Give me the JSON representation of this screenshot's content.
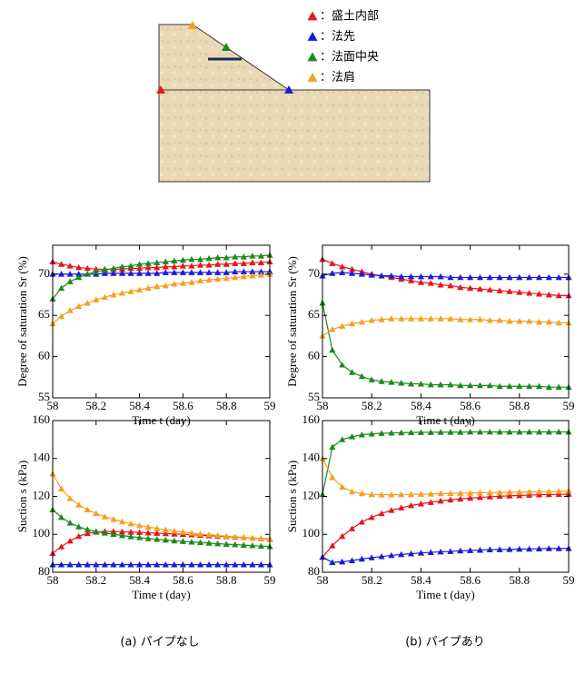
{
  "diagram": {
    "legend": [
      {
        "label": "：盛土内部",
        "color": "#e8141c"
      },
      {
        "label": "：法先",
        "color": "#1a1adc"
      },
      {
        "label": "：法面中央",
        "color": "#1a8a1a"
      },
      {
        "label": "：法肩",
        "color": "#f5a020"
      }
    ]
  },
  "captions": [
    "(a) パイプなし",
    "(b) パイプあり"
  ],
  "chart_data": [
    {
      "type": "line",
      "xlabel": "Time t (day)",
      "ylabel": "Degree of saturation Sr (%)",
      "xlim": [
        58,
        59
      ],
      "xticks": [
        58,
        58.2,
        58.4,
        58.6,
        58.8,
        59
      ],
      "ylim": [
        55,
        73.5
      ],
      "yticks": [
        55,
        60,
        65,
        70
      ],
      "x": [
        58,
        58.04,
        58.08,
        58.12,
        58.16,
        58.2,
        58.24,
        58.28,
        58.32,
        58.36,
        58.4,
        58.44,
        58.48,
        58.52,
        58.56,
        58.6,
        58.64,
        58.68,
        58.72,
        58.76,
        58.8,
        58.84,
        58.88,
        58.92,
        58.96,
        59
      ],
      "series": [
        {
          "color": "#e8141c",
          "values": [
            71.5,
            71.2,
            71.0,
            70.8,
            70.7,
            70.6,
            70.6,
            70.6,
            70.6,
            70.7,
            70.7,
            70.8,
            70.8,
            70.9,
            70.9,
            71.0,
            71.0,
            71.1,
            71.1,
            71.2,
            71.2,
            71.3,
            71.3,
            71.4,
            71.4,
            71.5
          ]
        },
        {
          "color": "#1a1adc",
          "values": [
            70.0,
            70.0,
            70.0,
            70.0,
            70.0,
            70.0,
            70.1,
            70.1,
            70.1,
            70.1,
            70.1,
            70.1,
            70.1,
            70.2,
            70.2,
            70.2,
            70.2,
            70.2,
            70.2,
            70.2,
            70.2,
            70.3,
            70.3,
            70.3,
            70.3,
            70.3
          ]
        },
        {
          "color": "#1a8a1a",
          "values": [
            67.0,
            68.3,
            69.1,
            69.6,
            70.0,
            70.3,
            70.5,
            70.7,
            70.9,
            71.0,
            71.2,
            71.3,
            71.4,
            71.5,
            71.6,
            71.7,
            71.8,
            71.8,
            71.9,
            72.0,
            72.0,
            72.1,
            72.1,
            72.2,
            72.2,
            72.3
          ]
        },
        {
          "color": "#f5a020",
          "values": [
            64.0,
            64.9,
            65.6,
            66.1,
            66.5,
            66.9,
            67.2,
            67.5,
            67.7,
            67.9,
            68.1,
            68.3,
            68.5,
            68.6,
            68.8,
            68.9,
            69.0,
            69.2,
            69.3,
            69.4,
            69.5,
            69.6,
            69.7,
            69.8,
            69.9,
            70.0
          ]
        }
      ]
    },
    {
      "type": "line",
      "xlabel": "Time t (day)",
      "ylabel": "Degree of saturation Sr (%)",
      "xlim": [
        58,
        59
      ],
      "xticks": [
        58,
        58.2,
        58.4,
        58.6,
        58.8,
        59
      ],
      "ylim": [
        55,
        73.5
      ],
      "yticks": [
        55,
        60,
        65,
        70
      ],
      "x": [
        58,
        58.04,
        58.08,
        58.12,
        58.16,
        58.2,
        58.24,
        58.28,
        58.32,
        58.36,
        58.4,
        58.44,
        58.48,
        58.52,
        58.56,
        58.6,
        58.64,
        58.68,
        58.72,
        58.76,
        58.8,
        58.84,
        58.88,
        58.92,
        58.96,
        59
      ],
      "series": [
        {
          "color": "#e8141c",
          "values": [
            71.8,
            71.3,
            70.9,
            70.6,
            70.3,
            70.0,
            69.8,
            69.6,
            69.4,
            69.2,
            69.0,
            68.9,
            68.7,
            68.6,
            68.4,
            68.3,
            68.2,
            68.1,
            68.0,
            67.9,
            67.8,
            67.7,
            67.6,
            67.5,
            67.4,
            67.4
          ]
        },
        {
          "color": "#1a1adc",
          "values": [
            69.8,
            70.1,
            70.2,
            70.1,
            70.0,
            69.9,
            69.8,
            69.8,
            69.7,
            69.7,
            69.7,
            69.7,
            69.7,
            69.6,
            69.6,
            69.6,
            69.6,
            69.6,
            69.6,
            69.6,
            69.6,
            69.6,
            69.6,
            69.6,
            69.6,
            69.6
          ]
        },
        {
          "color": "#1a8a1a",
          "values": [
            66.5,
            60.8,
            59.0,
            58.1,
            57.6,
            57.2,
            57.0,
            56.9,
            56.8,
            56.7,
            56.7,
            56.6,
            56.6,
            56.6,
            56.5,
            56.5,
            56.5,
            56.5,
            56.4,
            56.4,
            56.4,
            56.4,
            56.4,
            56.3,
            56.3,
            56.3
          ]
        },
        {
          "color": "#f5a020",
          "values": [
            62.5,
            63.3,
            63.7,
            64.0,
            64.2,
            64.4,
            64.5,
            64.6,
            64.6,
            64.6,
            64.6,
            64.6,
            64.6,
            64.6,
            64.5,
            64.5,
            64.5,
            64.4,
            64.4,
            64.3,
            64.3,
            64.3,
            64.2,
            64.2,
            64.1,
            64.1
          ]
        }
      ]
    },
    {
      "type": "line",
      "xlabel": "Time t (day)",
      "ylabel": "Suction s (kPa)",
      "xlim": [
        58,
        59
      ],
      "xticks": [
        58,
        58.2,
        58.4,
        58.6,
        58.8,
        59
      ],
      "ylim": [
        80,
        160
      ],
      "yticks": [
        80,
        100,
        120,
        140,
        160
      ],
      "x": [
        58,
        58.04,
        58.08,
        58.12,
        58.16,
        58.2,
        58.24,
        58.28,
        58.32,
        58.36,
        58.4,
        58.44,
        58.48,
        58.52,
        58.56,
        58.6,
        58.64,
        58.68,
        58.72,
        58.76,
        58.8,
        58.84,
        58.88,
        58.92,
        58.96,
        59
      ],
      "series": [
        {
          "color": "#e8141c",
          "values": [
            90,
            93.5,
            96.5,
            99,
            100.5,
            101.2,
            101.5,
            101.5,
            101.4,
            101.2,
            101,
            100.8,
            100.6,
            100.4,
            100.2,
            100,
            99.8,
            99.5,
            99.3,
            99,
            98.8,
            98.5,
            98.3,
            98,
            97.8,
            97.5
          ]
        },
        {
          "color": "#1a1adc",
          "values": [
            84,
            84,
            84,
            84,
            84,
            84,
            84,
            84,
            84,
            84,
            84,
            84,
            84,
            84,
            84,
            84,
            84,
            84,
            84,
            84,
            84,
            84,
            84,
            84,
            84,
            84
          ]
        },
        {
          "color": "#1a8a1a",
          "values": [
            113,
            109,
            106,
            104,
            102.5,
            101.5,
            100.7,
            100,
            99.4,
            98.8,
            98.3,
            97.8,
            97.4,
            97,
            96.6,
            96.3,
            96,
            95.7,
            95.4,
            95.1,
            94.8,
            94.6,
            94.3,
            94.1,
            93.8,
            93.6
          ]
        },
        {
          "color": "#f5a020",
          "values": [
            132,
            124,
            119,
            115.5,
            113,
            111,
            109.3,
            107.9,
            106.7,
            105.6,
            104.7,
            103.9,
            103.1,
            102.4,
            101.8,
            101.2,
            100.7,
            100.2,
            99.8,
            99.4,
            99,
            98.7,
            98.4,
            98.1,
            97.9,
            97.7
          ]
        }
      ]
    },
    {
      "type": "line",
      "xlabel": "Time t (day)",
      "ylabel": "Suction s (kPa)",
      "xlim": [
        58,
        59
      ],
      "xticks": [
        58,
        58.2,
        58.4,
        58.6,
        58.8,
        59
      ],
      "ylim": [
        80,
        160
      ],
      "yticks": [
        80,
        100,
        120,
        140,
        160
      ],
      "x": [
        58,
        58.04,
        58.08,
        58.12,
        58.16,
        58.2,
        58.24,
        58.28,
        58.32,
        58.36,
        58.4,
        58.44,
        58.48,
        58.52,
        58.56,
        58.6,
        58.64,
        58.68,
        58.72,
        58.76,
        58.8,
        58.84,
        58.88,
        58.92,
        58.96,
        59
      ],
      "series": [
        {
          "color": "#e8141c",
          "values": [
            88,
            94,
            99,
            103,
            106.5,
            109,
            111,
            112.7,
            114,
            115.2,
            116.1,
            116.9,
            117.6,
            118.2,
            118.7,
            119.1,
            119.5,
            119.8,
            120.1,
            120.3,
            120.5,
            120.7,
            120.9,
            121,
            121.1,
            121.2
          ]
        },
        {
          "color": "#1a1adc",
          "values": [
            88,
            85.2,
            85.5,
            86.2,
            87,
            87.7,
            88.3,
            88.9,
            89.4,
            89.8,
            90.2,
            90.5,
            90.8,
            91,
            91.3,
            91.5,
            91.7,
            91.9,
            92,
            92.1,
            92.2,
            92.3,
            92.4,
            92.5,
            92.5,
            92.6
          ]
        },
        {
          "color": "#1a8a1a",
          "values": [
            121,
            146,
            150,
            151.5,
            152.5,
            153,
            153.3,
            153.5,
            153.6,
            153.7,
            153.8,
            153.8,
            153.9,
            153.9,
            153.9,
            154,
            154,
            154,
            154,
            154,
            154,
            154,
            154,
            154,
            154,
            154
          ]
        },
        {
          "color": "#f5a020",
          "values": [
            140,
            130,
            125,
            122.5,
            121.5,
            121,
            120.9,
            120.9,
            121,
            121.1,
            121.2,
            121.3,
            121.5,
            121.6,
            121.7,
            121.8,
            121.9,
            122,
            122.1,
            122.2,
            122.3,
            122.4,
            122.5,
            122.6,
            122.7,
            122.8
          ]
        }
      ]
    }
  ]
}
